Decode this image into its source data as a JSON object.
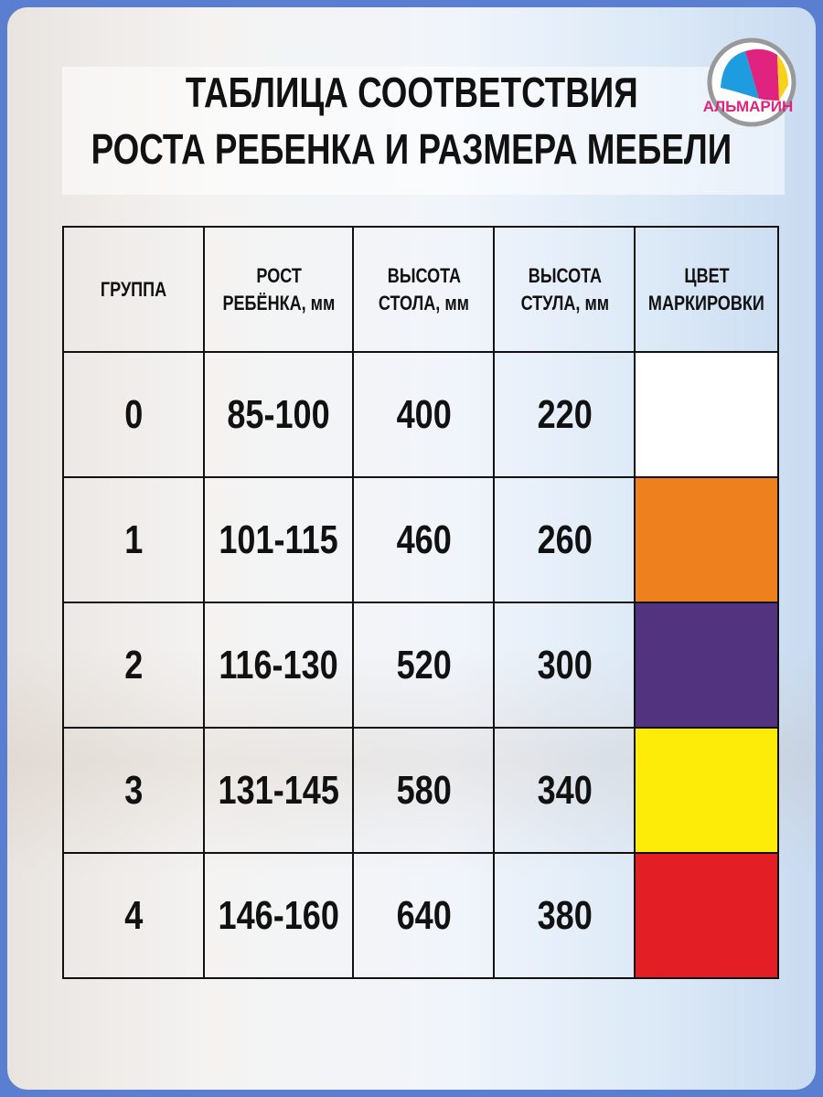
{
  "title_lines": [
    "ТАБЛИЦА СООТВЕТСТВИЯ",
    "РОСТА РЕБЕНКА И РАЗМЕРА МЕБЕЛИ"
  ],
  "logo": {
    "text": "АЛЬМАРИН",
    "colors": [
      "#1e9ce0",
      "#e0237e",
      "#f7d21a"
    ]
  },
  "table": {
    "headers": [
      [
        "ГРУППА"
      ],
      [
        "РОСТ",
        "РЕБЁНКА, мм"
      ],
      [
        "ВЫСОТА",
        "СТОЛА, мм"
      ],
      [
        "ВЫСОТА",
        "СТУЛА, мм"
      ],
      [
        "ЦВЕТ",
        "МАРКИРОВКИ"
      ]
    ],
    "rows": [
      {
        "group": "0",
        "height": "85-100",
        "table": "400",
        "chair": "220",
        "color": "#ffffff"
      },
      {
        "group": "1",
        "height": "101-115",
        "table": "460",
        "chair": "260",
        "color": "#ee811e"
      },
      {
        "group": "2",
        "height": "116-130",
        "table": "520",
        "chair": "300",
        "color": "#51337f"
      },
      {
        "group": "3",
        "height": "131-145",
        "table": "580",
        "chair": "340",
        "color": "#fdec07"
      },
      {
        "group": "4",
        "height": "146-160",
        "table": "640",
        "chair": "380",
        "color": "#e31e25"
      }
    ]
  }
}
